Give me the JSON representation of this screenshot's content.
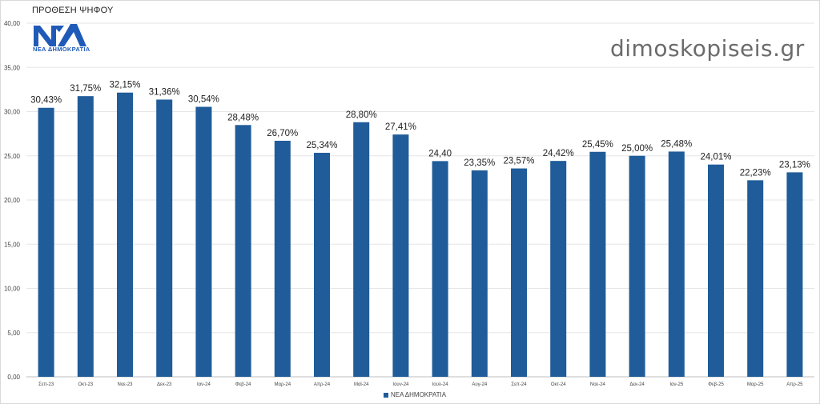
{
  "header": {
    "title": "ΠΡΟΘΕΣΗ ΨΗΦΟΥ",
    "logo_text": "ΝΕΑ ΔΗΜΟΚΡΑΤΙΑ",
    "watermark": "dimoskopiseis.gr"
  },
  "colors": {
    "bar": "#1f5c99",
    "grid": "#e6e6e6",
    "logo": "#1f5ab8"
  },
  "chart_data": {
    "type": "bar",
    "title": "ΠΡΟΘΕΣΗ ΨΗΦΟΥ",
    "xlabel": "",
    "ylabel": "",
    "ylim": [
      0,
      40
    ],
    "yticks": [
      "0,00",
      "5,00",
      "10,00",
      "15,00",
      "20,00",
      "25,00",
      "30,00",
      "35,00",
      "40,00"
    ],
    "grid": true,
    "legend_position": "bottom",
    "categories": [
      "Σεπ-23",
      "Οκτ-23",
      "Νοε-23",
      "Δεκ-23",
      "Ιαν-24",
      "Φεβ-24",
      "Μαρ-24",
      "Απρ-24",
      "Μαϊ-24",
      "Ιουν-24",
      "Ιουλ-24",
      "Αυγ-24",
      "Σεπ-24",
      "Οκτ-24",
      "Νοε-24",
      "Δεκ-24",
      "Ιαν-25",
      "Φεβ-25",
      "Μαρ-25",
      "Απρ-25"
    ],
    "series": [
      {
        "name": "ΝΕΑ ΔΗΜΟΚΡΑΤΙΑ",
        "values": [
          30.43,
          31.75,
          32.15,
          31.36,
          30.54,
          28.48,
          26.7,
          25.34,
          28.8,
          27.41,
          24.4,
          23.35,
          23.57,
          24.42,
          25.45,
          25.0,
          25.48,
          24.01,
          22.23,
          23.13
        ],
        "labels": [
          "30,43%",
          "31,75%",
          "32,15%",
          "31,36%",
          "30,54%",
          "28,48%",
          "26,70%",
          "25,34%",
          "28,80%",
          "27,41%",
          "24,40",
          "23,35%",
          "23,57%",
          "24,42%",
          "25,45%",
          "25,00%",
          "25,48%",
          "24,01%",
          "22,23%",
          "23,13%"
        ]
      }
    ]
  }
}
